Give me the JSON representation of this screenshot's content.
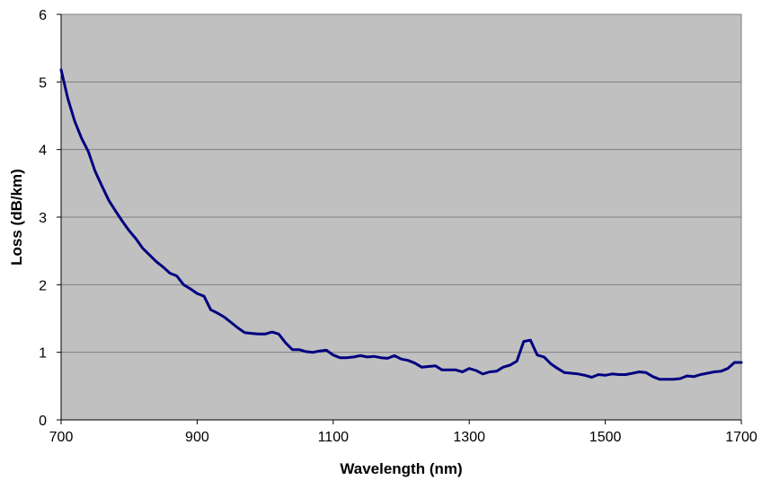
{
  "chart_data": {
    "type": "line",
    "title": "",
    "xlabel": "Wavelength (nm)",
    "ylabel": "Loss (dB/km)",
    "xlim": [
      700,
      1700
    ],
    "ylim": [
      0,
      6
    ],
    "xticks": [
      700,
      900,
      1100,
      1300,
      1500,
      1700
    ],
    "yticks": [
      0,
      1,
      2,
      3,
      4,
      5,
      6
    ],
    "grid": "horizontal",
    "legend": "none",
    "colors": {
      "line": "#000080",
      "plot_background": "#c0c0c0",
      "gridline": "#808080"
    },
    "series": [
      {
        "x": [
          700,
          710,
          720,
          730,
          740,
          750,
          760,
          770,
          780,
          790,
          800,
          810,
          820,
          830,
          840,
          850,
          860,
          870,
          880,
          890,
          900,
          910,
          920,
          930,
          940,
          950,
          960,
          970,
          980,
          990,
          1000,
          1010,
          1020,
          1030,
          1040,
          1050,
          1060,
          1070,
          1080,
          1090,
          1100,
          1110,
          1120,
          1130,
          1140,
          1150,
          1160,
          1170,
          1180,
          1190,
          1200,
          1210,
          1220,
          1230,
          1240,
          1250,
          1260,
          1270,
          1280,
          1290,
          1300,
          1310,
          1320,
          1330,
          1340,
          1350,
          1360,
          1370,
          1380,
          1390,
          1400,
          1410,
          1420,
          1430,
          1440,
          1450,
          1460,
          1470,
          1480,
          1490,
          1500,
          1510,
          1520,
          1530,
          1540,
          1550,
          1560,
          1570,
          1580,
          1590,
          1600,
          1610,
          1620,
          1630,
          1640,
          1650,
          1660,
          1670,
          1680,
          1690,
          1700
        ],
        "values": [
          5.18,
          4.75,
          4.42,
          4.17,
          3.97,
          3.68,
          3.46,
          3.25,
          3.09,
          2.94,
          2.8,
          2.68,
          2.54,
          2.44,
          2.34,
          2.26,
          2.17,
          2.13,
          2.0,
          1.94,
          1.87,
          1.83,
          1.63,
          1.58,
          1.52,
          1.44,
          1.36,
          1.29,
          1.28,
          1.27,
          1.27,
          1.3,
          1.27,
          1.14,
          1.04,
          1.04,
          1.01,
          1.0,
          1.02,
          1.03,
          0.96,
          0.92,
          0.92,
          0.93,
          0.95,
          0.93,
          0.94,
          0.92,
          0.91,
          0.95,
          0.9,
          0.88,
          0.84,
          0.78,
          0.79,
          0.8,
          0.74,
          0.74,
          0.74,
          0.71,
          0.76,
          0.73,
          0.68,
          0.71,
          0.72,
          0.78,
          0.81,
          0.87,
          1.16,
          1.18,
          0.96,
          0.93,
          0.83,
          0.76,
          0.7,
          0.69,
          0.68,
          0.66,
          0.63,
          0.67,
          0.66,
          0.68,
          0.67,
          0.67,
          0.69,
          0.71,
          0.7,
          0.64,
          0.6,
          0.6,
          0.6,
          0.61,
          0.65,
          0.64,
          0.67,
          0.69,
          0.71,
          0.72,
          0.76,
          0.85,
          0.85
        ]
      }
    ]
  }
}
